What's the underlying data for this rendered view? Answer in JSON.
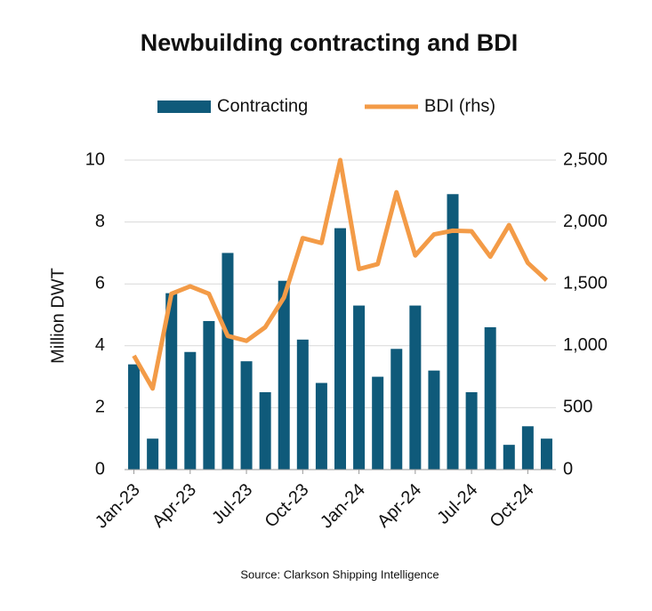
{
  "chart_data": {
    "type": "bar_line",
    "title": "Newbuilding contracting and BDI",
    "ylabel": "Million DWT",
    "source": "Source: Clarkson Shipping Intelligence",
    "categories": [
      "Jan-23",
      null,
      null,
      "Apr-23",
      null,
      null,
      "Jul-23",
      null,
      null,
      "Oct-23",
      null,
      null,
      "Jan-24",
      null,
      null,
      "Apr-24",
      null,
      null,
      "Jul-24",
      null,
      null,
      "Oct-24",
      null
    ],
    "series": [
      {
        "name": "Contracting",
        "type": "bar",
        "color": "#0f5a7a",
        "values": [
          3.4,
          1.0,
          5.7,
          3.8,
          4.8,
          7.0,
          3.5,
          2.5,
          6.1,
          4.2,
          2.8,
          7.8,
          5.3,
          3.0,
          3.9,
          5.3,
          3.2,
          8.9,
          2.5,
          4.6,
          0.8,
          1.4,
          1.0
        ]
      },
      {
        "name": "BDI (rhs)",
        "type": "line",
        "axis": "y2",
        "color": "#f39b47",
        "values": [
          920,
          655,
          1420,
          1480,
          1420,
          1080,
          1040,
          1150,
          1390,
          1870,
          1830,
          2500,
          1620,
          1660,
          2240,
          1730,
          1900,
          1930,
          1925,
          1720,
          1975,
          1670,
          1530
        ]
      }
    ],
    "ylim": [
      0,
      10
    ],
    "yticks": [
      0,
      2,
      4,
      6,
      8,
      10
    ],
    "y2lim": [
      0,
      2500
    ],
    "y2ticks": [
      0,
      500,
      {
        "value": 1000,
        "label": "1,000"
      },
      {
        "value": 1500,
        "label": "1,500"
      },
      {
        "value": 2000,
        "label": "2,000"
      },
      {
        "value": 2500,
        "label": "2,500"
      }
    ],
    "grid": true,
    "legend": "top"
  }
}
